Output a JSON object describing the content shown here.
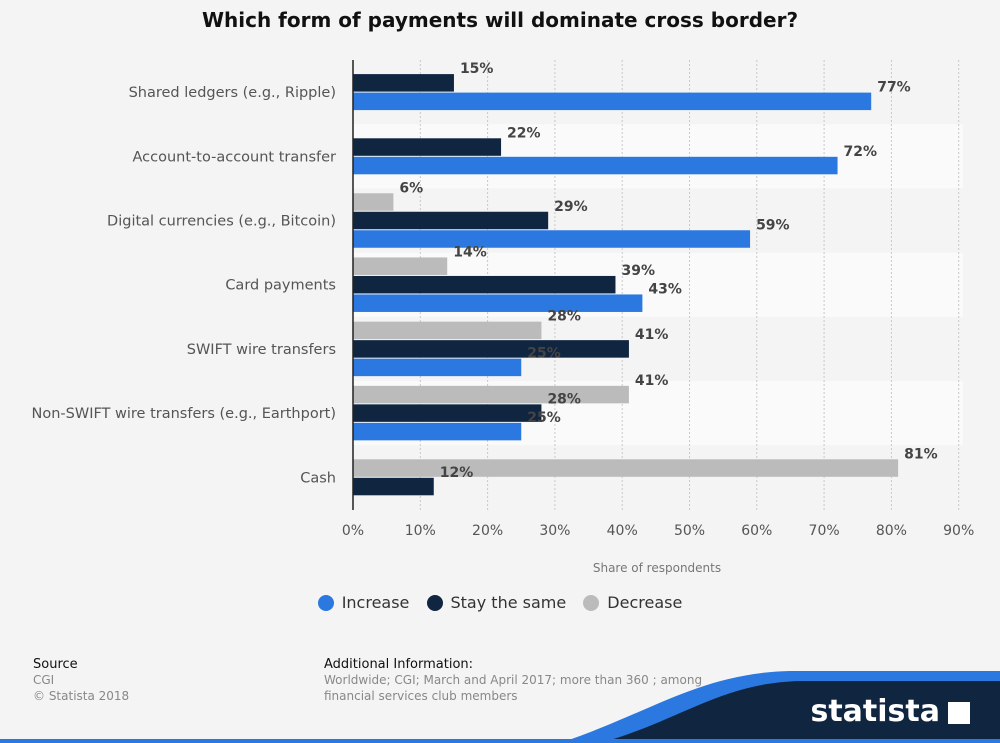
{
  "title": "Which form of payments will dominate cross border?",
  "colors": {
    "increase": "#2b78e0",
    "stay": "#0f2540",
    "decrease": "#bbbbbb"
  },
  "legend": [
    {
      "key": "increase",
      "label": "Increase"
    },
    {
      "key": "stay",
      "label": "Stay the same"
    },
    {
      "key": "decrease",
      "label": "Decrease"
    }
  ],
  "footer": {
    "source_heading": "Source",
    "source": "CGI",
    "copyright": "© Statista 2018",
    "info_heading": "Additional Information:",
    "info_line1": "Worldwide; CGI; March and April 2017; more than 360 ; among",
    "info_line2": "financial services club members",
    "brand": "statista"
  },
  "chart_data": {
    "type": "bar",
    "orientation": "horizontal",
    "xlabel": "Share of respondents",
    "ylabel": "",
    "xlim": [
      0,
      90
    ],
    "xticks": [
      "0%",
      "10%",
      "20%",
      "30%",
      "40%",
      "50%",
      "60%",
      "70%",
      "80%",
      "90%"
    ],
    "categories": [
      "Shared ledgers (e.g., Ripple)",
      "Account-to-account transfer",
      "Digital currencies (e.g., Bitcoin)",
      "Card payments",
      "SWIFT wire transfers",
      "Non-SWIFT wire transfers (e.g., Earthport)",
      "Cash"
    ],
    "series": [
      {
        "name": "Decrease",
        "key": "decrease",
        "values": [
          null,
          null,
          6,
          14,
          28,
          41,
          81
        ]
      },
      {
        "name": "Stay the same",
        "key": "stay",
        "values": [
          15,
          22,
          29,
          39,
          41,
          28,
          12
        ]
      },
      {
        "name": "Increase",
        "key": "increase",
        "values": [
          77,
          72,
          59,
          43,
          25,
          25,
          null
        ]
      }
    ],
    "legend_position": "bottom",
    "grid": true
  }
}
